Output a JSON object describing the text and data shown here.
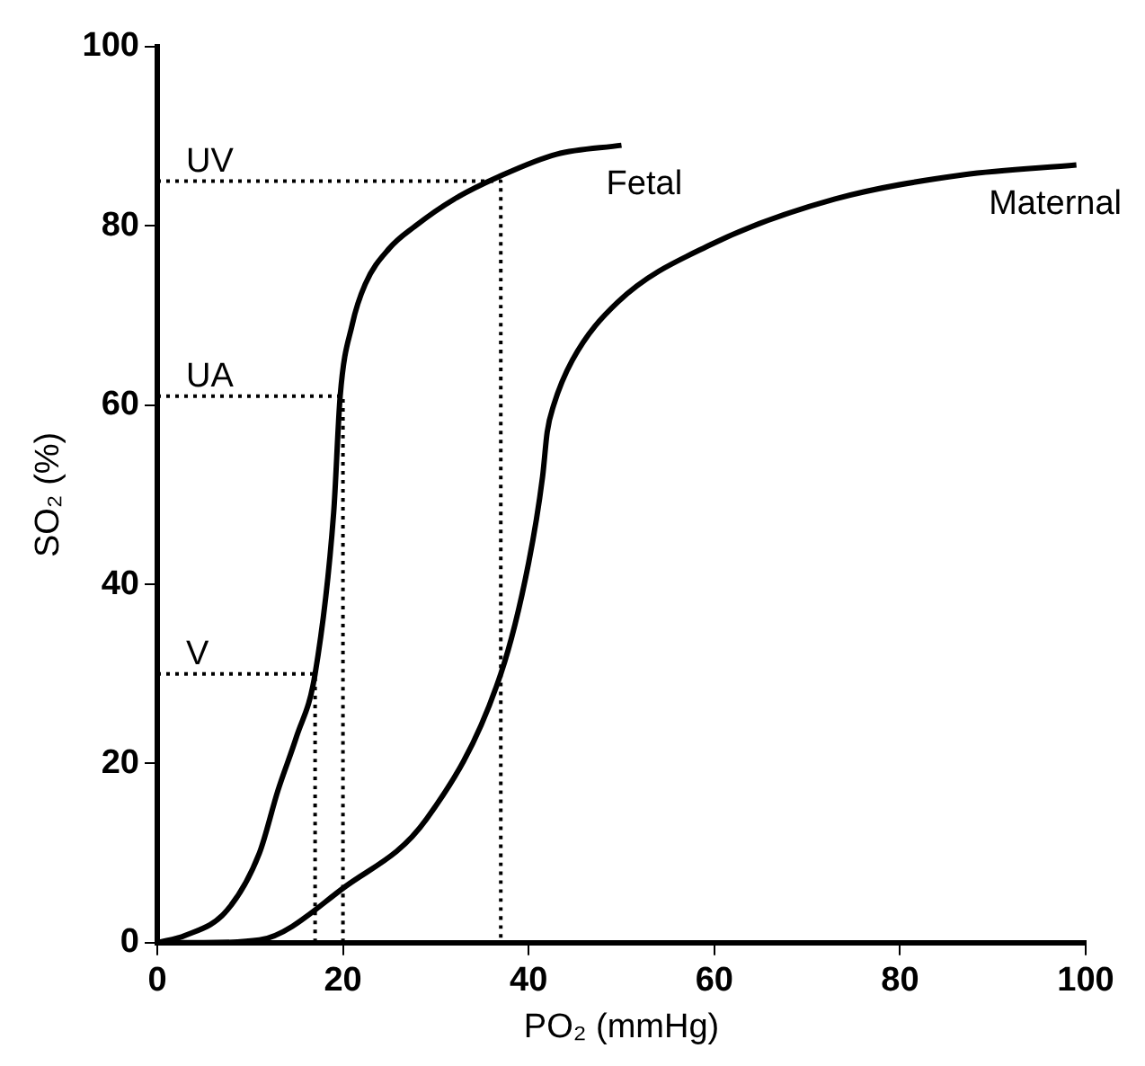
{
  "chart_data": {
    "type": "line",
    "xlabel": "PO₂ (mmHg)",
    "ylabel": "SO₂ (%)",
    "xlim": [
      0,
      100
    ],
    "ylim": [
      0,
      100
    ],
    "xticks": [
      0,
      20,
      40,
      60,
      80,
      100
    ],
    "yticks": [
      0,
      20,
      40,
      60,
      80,
      100
    ],
    "grid": false,
    "legend": false,
    "marker": "none",
    "series": [
      {
        "name": "Fetal",
        "color": "#000000",
        "line_style": "solid",
        "x": [
          0,
          3,
          7.5,
          11,
          13,
          15,
          17,
          19,
          19.7,
          21,
          22.4,
          25,
          27.8,
          32,
          36.8,
          43,
          50
        ],
        "values": [
          0,
          0.8,
          3.6,
          10,
          17,
          23,
          30,
          48,
          61,
          69,
          73.5,
          77.5,
          80,
          83,
          85.5,
          88,
          89
        ]
      },
      {
        "name": "Maternal",
        "color": "#000000",
        "line_style": "solid",
        "x": [
          0,
          5,
          11,
          20.3,
          29,
          37,
          40,
          41.5,
          42,
          42.7,
          44.7,
          49.6,
          59.8,
          73,
          86.8,
          99
        ],
        "values": [
          0,
          0,
          0.3,
          6.3,
          13.8,
          30,
          42.4,
          52,
          57,
          60,
          65,
          71.5,
          78,
          83,
          85.7,
          86.8
        ]
      },
      {
        "color": "#000000",
        "line_style": "dotted",
        "x": [
          0,
          37,
          37
        ],
        "values": [
          85,
          85,
          0
        ]
      },
      {
        "color": "#000000",
        "line_style": "dotted",
        "x": [
          0,
          20,
          20
        ],
        "values": [
          61,
          61,
          0
        ]
      },
      {
        "color": "#000000",
        "line_style": "dotted",
        "x": [
          0,
          17,
          17
        ],
        "values": [
          30,
          30,
          0
        ]
      }
    ],
    "annotations": [
      "UV",
      "UA",
      "V"
    ]
  }
}
